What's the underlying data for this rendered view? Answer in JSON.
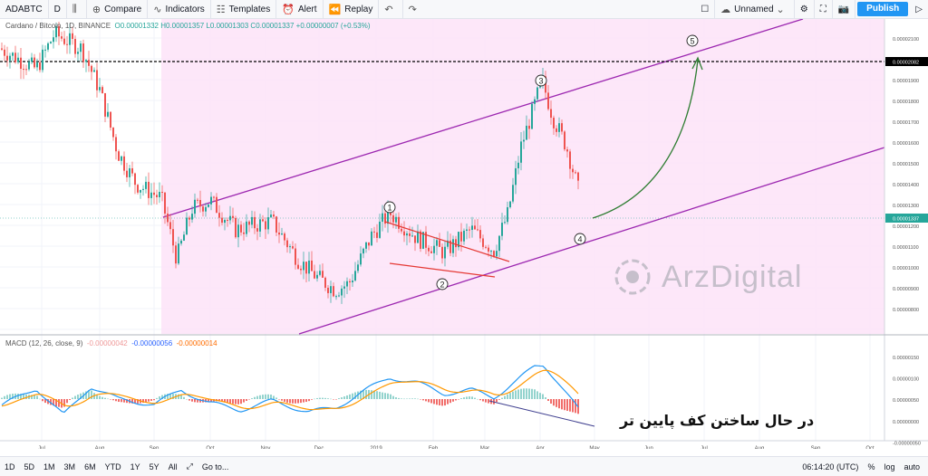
{
  "toolbar": {
    "symbol": "ADABTC",
    "interval": "D",
    "compare": "Compare",
    "indicators": "Indicators",
    "templates": "Templates",
    "alert": "Alert",
    "replay": "Replay",
    "layout_name": "Unnamed",
    "publish": "Publish"
  },
  "legend": {
    "name": "Cardano / Bitcoin, 1D, BINANCE",
    "ohlc": "O0.00001332 H0.00001357 L0.00001303 C0.00001337 +0.00000007 (+0.53%)"
  },
  "macd_legend": {
    "name": "MACD (12, 26, close, 9)",
    "hist": "-0.00000042",
    "macd": "-0.00000056",
    "signal": "-0.00000014"
  },
  "price_axis": {
    "labels": [
      "0.00002100",
      "0.00002000",
      "0.00001900",
      "0.00001800",
      "0.00001700",
      "0.00001600",
      "0.00001500",
      "0.00001400",
      "0.00001300",
      "0.00001200",
      "0.00001100",
      "0.00001000",
      "0.00000900",
      "0.00000800"
    ],
    "dashed_level": "0.00002082",
    "current_price": "0.00001337"
  },
  "macd_axis": {
    "labels": [
      "0.00000150",
      "0.00000100",
      "0.00000050",
      "0.00000000",
      "-0.00000050",
      "-0.00000100"
    ]
  },
  "time_axis": {
    "labels": [
      "Jul",
      "Aug",
      "Sep",
      "Oct",
      "Nov",
      "Dec",
      "2019",
      "Feb",
      "Mar",
      "Apr",
      "May",
      "Jun",
      "Jul",
      "Aug",
      "Sep",
      "Oct"
    ]
  },
  "wave_labels": [
    "1",
    "2",
    "3",
    "4",
    "5"
  ],
  "annotation": "در حال ساختن کف پایین تر",
  "watermark": "ArzDigital",
  "bottombar": {
    "ranges": [
      "1D",
      "5D",
      "1M",
      "3M",
      "6M",
      "YTD",
      "1Y",
      "5Y",
      "All"
    ],
    "goto": "Go to...",
    "time": "06:14:20 (UTC)",
    "percent": "%",
    "log": "log",
    "auto": "auto"
  },
  "colors": {
    "up": "#26a69a",
    "down": "#ef5350",
    "channel": "#9c27b0",
    "channel_fill": "#fde3f8",
    "macd_line": "#2196f3",
    "signal_line": "#ff9800",
    "arrow": "#2e7d32"
  }
}
